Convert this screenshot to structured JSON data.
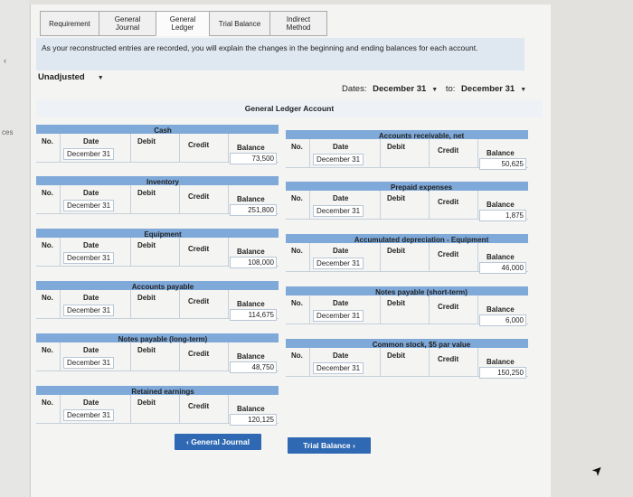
{
  "left_strip": {
    "arrow": "‹",
    "text": "ces"
  },
  "tabs": [
    {
      "label": "Requirement",
      "active": false
    },
    {
      "label": "General Journal",
      "active": false
    },
    {
      "label": "General Ledger",
      "active": true
    },
    {
      "label": "Trial Balance",
      "active": false
    },
    {
      "label": "Indirect Method",
      "active": false
    }
  ],
  "instruction": "As your reconstructed entries are recorded, you will explain the changes in the beginning and ending balances for each account.",
  "view_select": "Unadjusted",
  "dates": {
    "label": "Dates:",
    "from": "December 31",
    "to_label": "to:",
    "to": "December 31"
  },
  "ledger_title": "General Ledger Account",
  "column_headers": {
    "no": "No.",
    "date": "Date",
    "debit": "Debit",
    "credit": "Credit",
    "balance": "Balance"
  },
  "accounts": [
    {
      "name": "Cash",
      "date": "December 31",
      "balance": "73,500"
    },
    {
      "name": "Accounts receivable, net",
      "date": "December 31",
      "balance": "50,625"
    },
    {
      "name": "Inventory",
      "date": "December 31",
      "balance": "251,800"
    },
    {
      "name": "Prepaid expenses",
      "date": "December 31",
      "balance": "1,875"
    },
    {
      "name": "Equipment",
      "date": "December 31",
      "balance": "108,000"
    },
    {
      "name": "Accumulated depreciation - Equipment",
      "date": "December 31",
      "balance": "46,000"
    },
    {
      "name": "Accounts payable",
      "date": "December 31",
      "balance": "114,675"
    },
    {
      "name": "Notes payable (short-term)",
      "date": "December 31",
      "balance": "6,000"
    },
    {
      "name": "Notes payable (long-term)",
      "date": "December 31",
      "balance": "48,750"
    },
    {
      "name": "Common stock, $5 par value",
      "date": "December 31",
      "balance": "150,250"
    },
    {
      "name": "Retained earnings",
      "date": "December 31",
      "balance": "120,125"
    }
  ],
  "nav": {
    "prev": "‹  General Journal",
    "next": "Trial Balance  ›"
  }
}
